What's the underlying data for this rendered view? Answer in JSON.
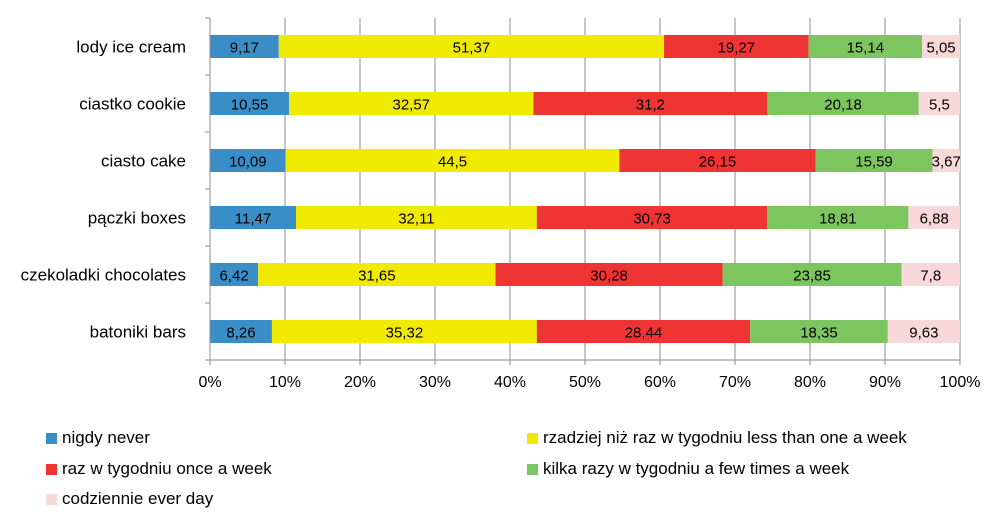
{
  "chart_data": {
    "type": "bar",
    "orientation": "horizontal",
    "stacked": "percent",
    "categories": [
      "lody ice cream",
      "ciastko cookie",
      "ciasto cake",
      "pączki boxes",
      "czekoladki chocolates",
      "batoniki bars"
    ],
    "series": [
      {
        "name": "nigdy never",
        "color": "#3a8ec8",
        "values": [
          9.17,
          10.55,
          10.09,
          11.47,
          6.42,
          8.26
        ],
        "labels": [
          "9,17",
          "10,55",
          "10,09",
          "11,47",
          "6,42",
          "8,26"
        ]
      },
      {
        "name": "rzadziej niż raz w tygodniu less than one a week",
        "color": "#f0ea00",
        "values": [
          51.37,
          32.57,
          44.5,
          32.11,
          31.65,
          35.32
        ],
        "labels": [
          "51,37",
          "32,57",
          "44,5",
          "32,11",
          "31,65",
          "35,32"
        ]
      },
      {
        "name": "raz w tygodniu once a week",
        "color": "#ef3434",
        "values": [
          19.27,
          31.2,
          26.15,
          30.73,
          30.28,
          28.44
        ],
        "labels": [
          "19,27",
          "31,2",
          "26,15",
          "30,73",
          "30,28",
          "28,44"
        ]
      },
      {
        "name": "kilka razy w tygodniu a few times a week",
        "color": "#7dc55e",
        "values": [
          15.14,
          20.18,
          15.59,
          18.81,
          23.85,
          18.35
        ],
        "labels": [
          "15,14",
          "20,18",
          "15,59",
          "18,81",
          "23,85",
          "18,35"
        ]
      },
      {
        "name": "codziennie ever day",
        "color": "#f8d8d8",
        "values": [
          5.05,
          5.5,
          3.67,
          6.88,
          7.8,
          9.63
        ],
        "labels": [
          "5,05",
          "5,5",
          "3,67",
          "6,88",
          "7,8",
          "9,63"
        ]
      }
    ],
    "xlim": [
      0,
      100
    ],
    "xticks": [
      "0%",
      "10%",
      "20%",
      "30%",
      "40%",
      "50%",
      "60%",
      "70%",
      "80%",
      "90%",
      "100%"
    ],
    "grid": true,
    "legend": "bottom"
  }
}
